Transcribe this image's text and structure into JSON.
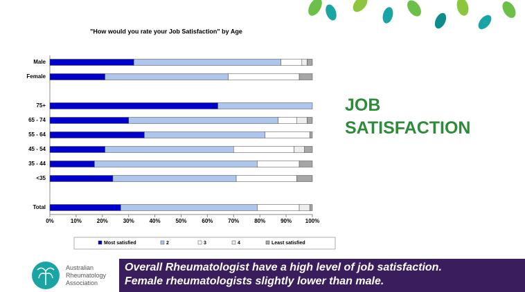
{
  "heading": "JOB SATISFACTION",
  "logo": [
    "Australian",
    "Rheumatology",
    "Association"
  ],
  "banner": [
    "Overall Rheumatologist have a high level of job satisfaction.",
    "Female rheumatologists slightly lower than male."
  ],
  "chart_data": {
    "type": "stacked-barh",
    "title": "\"How would you rate your Job Satisfaction\" by Age",
    "categories": [
      "Male",
      "Female",
      null,
      "75+",
      "65 - 74",
      "55 - 64",
      "45 - 54",
      "35 - 44",
      "<35",
      null,
      "Total"
    ],
    "series": [
      {
        "name": "Most satisfied",
        "color": "#0000cc",
        "values": [
          32,
          21,
          null,
          64,
          30,
          36,
          21,
          17,
          24,
          null,
          27
        ]
      },
      {
        "name": "2",
        "color": "#aec6ee",
        "values": [
          56,
          47,
          null,
          36,
          57,
          46,
          49,
          62,
          47,
          null,
          52
        ]
      },
      {
        "name": "3",
        "color": "#ffffff",
        "values": [
          8,
          27,
          null,
          0,
          7,
          17,
          23,
          16,
          23,
          null,
          16
        ]
      },
      {
        "name": "4",
        "color": "#eeeeee",
        "values": [
          2,
          0,
          null,
          0,
          4,
          0,
          4,
          0,
          0,
          null,
          4
        ]
      },
      {
        "name": "Least satisfied",
        "color": "#a6a6a6",
        "values": [
          2,
          5,
          null,
          0,
          2,
          1,
          3,
          5,
          6,
          null,
          1
        ]
      }
    ],
    "xlim": [
      0,
      100
    ],
    "xticks": [
      {
        "value": 0,
        "label": "0%"
      },
      {
        "value": 10,
        "label": "10%"
      },
      {
        "value": 20,
        "label": "20%"
      },
      {
        "value": 30,
        "label": "30%"
      },
      {
        "value": 40,
        "label": "40%"
      },
      {
        "value": 50,
        "label": "50%"
      },
      {
        "value": 60,
        "label": "60%"
      },
      {
        "value": 70,
        "label": "70%"
      },
      {
        "value": 80,
        "label": "80%"
      },
      {
        "value": 90,
        "label": "90%"
      },
      {
        "value": 100,
        "label": "100%"
      }
    ],
    "legend": "bottom"
  }
}
